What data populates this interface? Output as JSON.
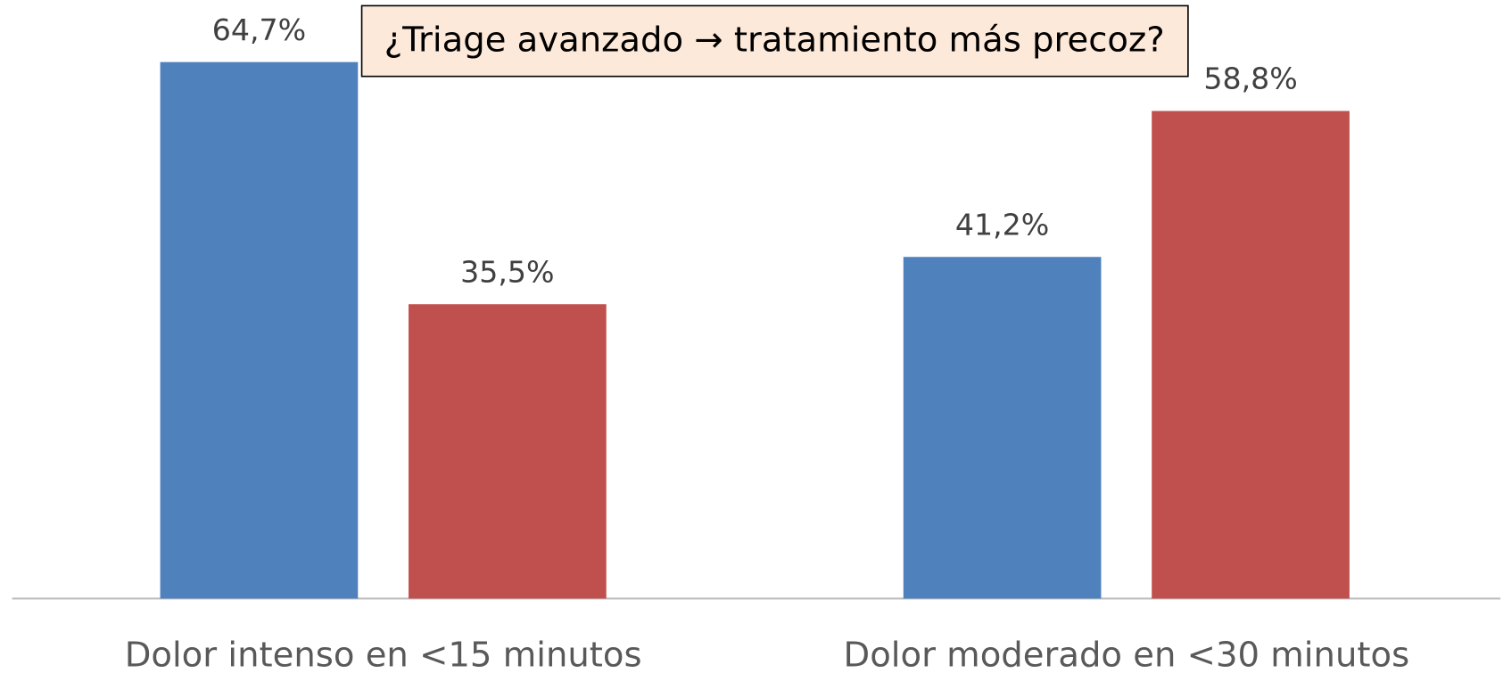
{
  "chart_data": {
    "type": "bar",
    "annotation": "¿Triage avanzado → tratamiento más precoz?",
    "categories": [
      "Dolor intenso en <15 minutos",
      "Dolor moderado en <30 minutos"
    ],
    "series": [
      {
        "color": "#4f81bd",
        "values": [
          64.7,
          41.2
        ],
        "value_labels": [
          "64,7%",
          "41,2%"
        ]
      },
      {
        "color": "#c0504d",
        "values": [
          35.5,
          58.8
        ],
        "value_labels": [
          "35,5%",
          "58,8%"
        ]
      }
    ]
  }
}
